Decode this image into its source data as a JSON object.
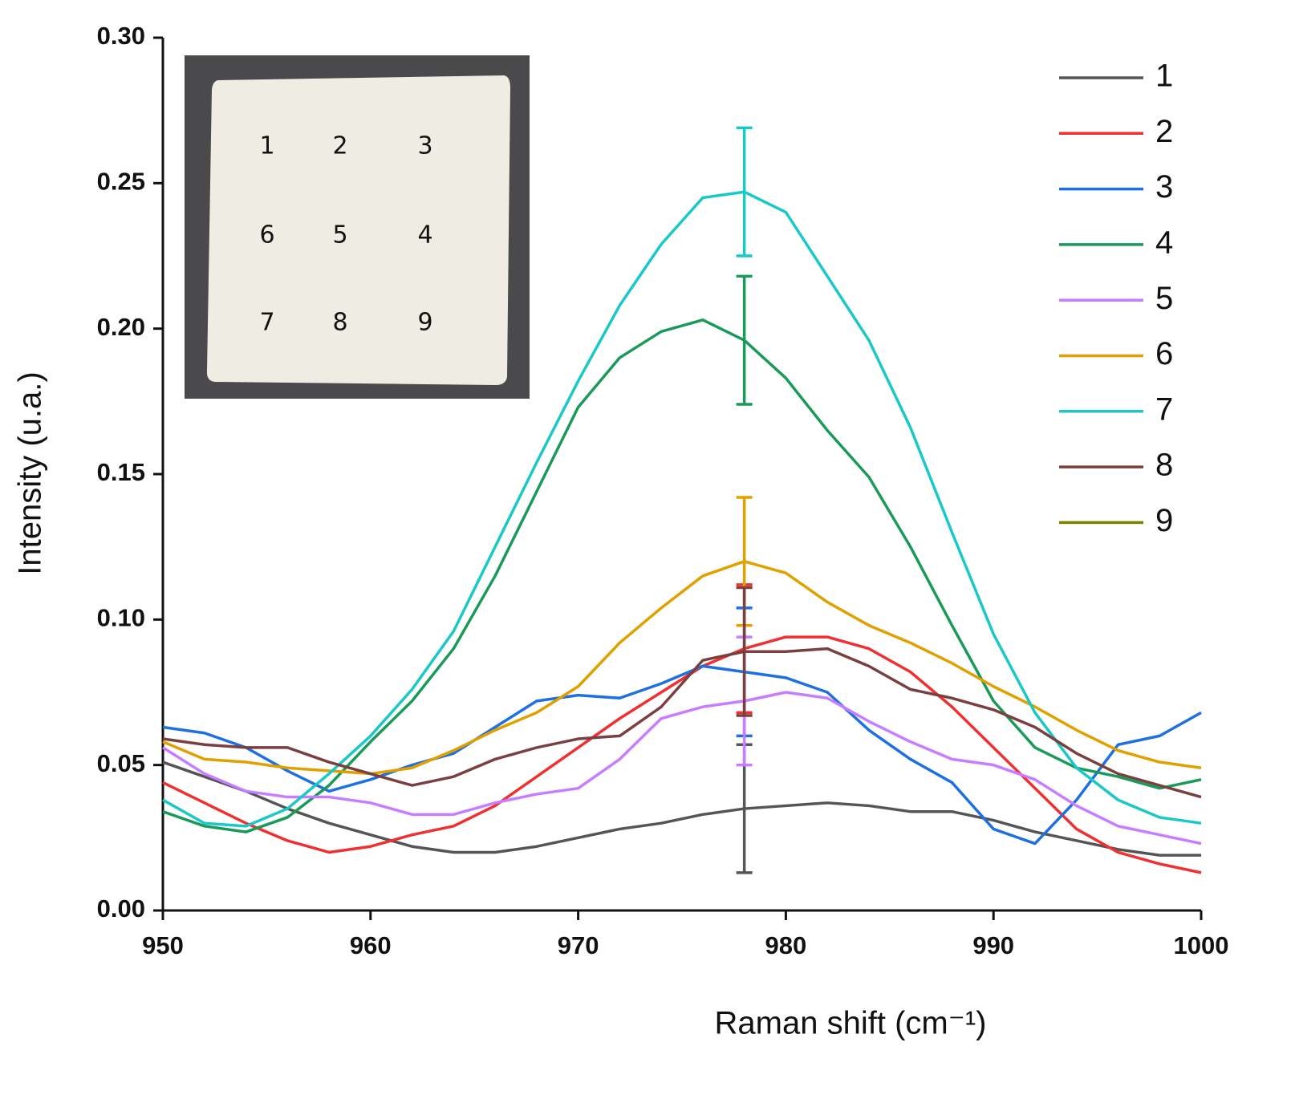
{
  "chart_data": {
    "type": "line",
    "x_label": "Raman shift (cm⁻¹)",
    "y_label": "Intensity (u.a.)",
    "x": [
      950,
      952,
      954,
      956,
      958,
      960,
      962,
      964,
      966,
      968,
      970,
      972,
      974,
      976,
      978,
      980,
      982,
      984,
      986,
      988,
      990,
      992,
      994,
      996,
      998,
      1000
    ],
    "xlim": [
      950,
      1000
    ],
    "xticks": [
      950,
      960,
      970,
      980,
      990,
      1000
    ],
    "ylim": [
      0,
      0.3
    ],
    "yticks": [
      {
        "value": 0,
        "label": "0.00"
      },
      {
        "value": 0.05,
        "label": "0.05"
      },
      {
        "value": 0.1,
        "label": "0.10"
      },
      {
        "value": 0.15,
        "label": "0.15"
      },
      {
        "value": 0.2,
        "label": "0.20"
      },
      {
        "value": 0.25,
        "label": "0.25"
      },
      {
        "value": 0.3,
        "label": "0.30"
      }
    ],
    "legend": "upper right",
    "series": [
      {
        "name": "1",
        "color": "#555555",
        "error_at": 978,
        "error": 0.022,
        "values": [
          0.051,
          0.046,
          0.041,
          0.035,
          0.03,
          0.026,
          0.022,
          0.02,
          0.02,
          0.022,
          0.025,
          0.028,
          0.03,
          0.033,
          0.035,
          0.036,
          0.037,
          0.036,
          0.034,
          0.034,
          0.031,
          0.027,
          0.024,
          0.021,
          0.019,
          0.019
        ]
      },
      {
        "name": "2",
        "color": "#f03030",
        "error_at": 978,
        "error": 0.022,
        "values": [
          0.044,
          0.037,
          0.03,
          0.024,
          0.02,
          0.022,
          0.026,
          0.029,
          0.036,
          0.046,
          0.056,
          0.066,
          0.075,
          0.084,
          0.09,
          0.094,
          0.094,
          0.09,
          0.082,
          0.07,
          0.056,
          0.042,
          0.028,
          0.02,
          0.016,
          0.013
        ]
      },
      {
        "name": "3",
        "color": "#1e6fe0",
        "error_at": 978,
        "error": 0.022,
        "values": [
          0.063,
          0.061,
          0.056,
          0.048,
          0.041,
          0.045,
          0.05,
          0.054,
          0.063,
          0.072,
          0.074,
          0.073,
          0.078,
          0.084,
          0.082,
          0.08,
          0.075,
          0.062,
          0.052,
          0.044,
          0.028,
          0.023,
          0.038,
          0.057,
          0.06,
          0.068
        ]
      },
      {
        "name": "4",
        "color": "#1a9a5a",
        "error_at": 978,
        "error": 0.022,
        "values": [
          0.034,
          0.029,
          0.027,
          0.032,
          0.043,
          0.058,
          0.072,
          0.09,
          0.115,
          0.144,
          0.173,
          0.19,
          0.199,
          0.203,
          0.196,
          0.183,
          0.165,
          0.149,
          0.125,
          0.098,
          0.072,
          0.056,
          0.049,
          0.046,
          0.042,
          0.045
        ]
      },
      {
        "name": "5",
        "color": "#c77dff",
        "error_at": 978,
        "error": 0.022,
        "values": [
          0.056,
          0.047,
          0.041,
          0.039,
          0.039,
          0.037,
          0.033,
          0.033,
          0.037,
          0.04,
          0.042,
          0.052,
          0.066,
          0.07,
          0.072,
          0.075,
          0.073,
          0.065,
          0.058,
          0.052,
          0.05,
          0.045,
          0.036,
          0.029,
          0.026,
          0.023
        ]
      },
      {
        "name": "6",
        "color": "#e0a000",
        "error_at": 978,
        "error": 0.022,
        "values": [
          0.058,
          0.052,
          0.051,
          0.049,
          0.048,
          0.047,
          0.049,
          0.055,
          0.062,
          0.068,
          0.077,
          0.092,
          0.104,
          0.115,
          0.12,
          0.116,
          0.106,
          0.098,
          0.092,
          0.085,
          0.077,
          0.07,
          0.062,
          0.055,
          0.051,
          0.049
        ]
      },
      {
        "name": "7",
        "color": "#1ac8c8",
        "error_at": 978,
        "error": 0.022,
        "values": [
          0.038,
          0.03,
          0.029,
          0.035,
          0.047,
          0.06,
          0.076,
          0.096,
          0.125,
          0.154,
          0.182,
          0.208,
          0.229,
          0.245,
          0.247,
          0.24,
          0.218,
          0.196,
          0.166,
          0.13,
          0.095,
          0.068,
          0.049,
          0.038,
          0.032,
          0.03
        ]
      },
      {
        "name": "8",
        "color": "#7a4040",
        "error_at": 978,
        "error": 0.022,
        "values": [
          0.059,
          0.057,
          0.056,
          0.056,
          0.051,
          0.047,
          0.043,
          0.046,
          0.052,
          0.056,
          0.059,
          0.06,
          0.07,
          0.086,
          0.089,
          0.089,
          0.09,
          0.084,
          0.076,
          0.073,
          0.069,
          0.063,
          0.054,
          0.047,
          0.043,
          0.039
        ]
      },
      {
        "name": "9",
        "color": "#808000"
      }
    ],
    "inset": {
      "labels": [
        [
          "1",
          "2",
          "3"
        ],
        [
          "6",
          "5",
          "4"
        ],
        [
          "7",
          "8",
          "9"
        ]
      ]
    }
  }
}
